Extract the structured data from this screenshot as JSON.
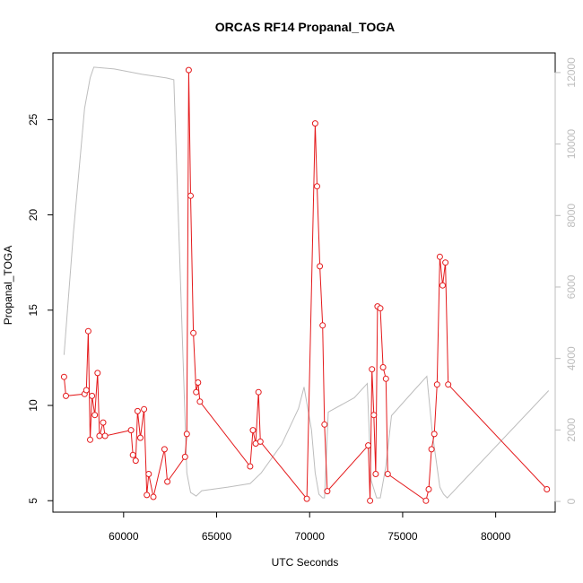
{
  "chart_data": {
    "type": "line",
    "title": "ORCAS RF14 Propanal_TOGA",
    "xlabel": "UTC Seconds",
    "ylabel": "Propanal_TOGA",
    "xlim": [
      56200,
      83200
    ],
    "ylim": [
      4.4,
      28.5
    ],
    "y2lim": [
      -300,
      12550
    ],
    "x_ticks": [
      60000,
      65000,
      70000,
      75000,
      80000
    ],
    "x_tick_labels": [
      "60000",
      "65000",
      "70000",
      "75000",
      "80000"
    ],
    "y_ticks": [
      5,
      10,
      15,
      20,
      25
    ],
    "y_tick_labels": [
      "5",
      "10",
      "15",
      "20",
      "25"
    ],
    "y2_ticks": [
      0,
      2000,
      4000,
      6000,
      8000,
      10000,
      12000
    ],
    "y2_tick_labels": [
      "0",
      "2000",
      "4000",
      "6000",
      "8000",
      "10000",
      "12000"
    ],
    "grid": false,
    "series": [
      {
        "axis": "left",
        "color": "#e41a1c",
        "marker": "open-circle",
        "x": [
          56800,
          56900,
          57900,
          58000,
          58100,
          58200,
          58300,
          58450,
          58600,
          58700,
          58900,
          59000,
          60400,
          60500,
          60650,
          60750,
          60900,
          61100,
          61250,
          61350,
          61600,
          62200,
          62350,
          63300,
          63400,
          63500,
          63600,
          63750,
          63900,
          64000,
          64100,
          66800,
          66950,
          67100,
          67250,
          67350,
          69850,
          70300,
          70400,
          70550,
          70700,
          70800,
          70950,
          73150,
          73250,
          73350,
          73450,
          73550,
          73650,
          73800,
          73950,
          74100,
          74200,
          76250,
          76400,
          76550,
          76700,
          76850,
          77000,
          77150,
          77300,
          77450,
          82750
        ],
        "y": [
          11.5,
          10.5,
          10.6,
          10.8,
          13.9,
          8.2,
          10.5,
          9.5,
          11.7,
          8.4,
          9.1,
          8.4,
          8.7,
          7.4,
          7.1,
          9.7,
          8.3,
          9.8,
          5.3,
          6.4,
          5.2,
          7.7,
          6.0,
          7.3,
          8.5,
          27.6,
          21.0,
          13.8,
          10.7,
          11.2,
          10.2,
          6.8,
          8.7,
          8.0,
          10.7,
          8.1,
          5.1,
          24.8,
          21.5,
          17.3,
          14.2,
          9.0,
          5.5,
          7.9,
          5.0,
          11.9,
          9.5,
          6.4,
          15.2,
          15.1,
          12.0,
          11.4,
          6.4,
          5.0,
          5.6,
          7.7,
          8.5,
          11.1,
          17.8,
          16.3,
          17.5,
          11.1,
          5.6
        ]
      },
      {
        "axis": "right",
        "color": "#bdbdbd",
        "marker": "none",
        "x": [
          56800,
          57300,
          57900,
          58200,
          58400,
          59500,
          61000,
          62300,
          62700,
          63400,
          63600,
          63900,
          64000,
          64200,
          65600,
          66800,
          67400,
          68500,
          69400,
          69700,
          70100,
          70300,
          70500,
          70700,
          70800,
          71000,
          72400,
          73100,
          73300,
          73600,
          73800,
          74100,
          74400,
          75600,
          76300,
          76600,
          77000,
          77200,
          77400,
          82850
        ],
        "y": [
          4100,
          7500,
          11000,
          11850,
          12150,
          12100,
          11950,
          11850,
          11800,
          800,
          250,
          150,
          200,
          300,
          400,
          500,
          800,
          1600,
          2600,
          3200,
          2000,
          800,
          200,
          100,
          100,
          2500,
          2900,
          3300,
          600,
          100,
          100,
          1000,
          2400,
          3100,
          3500,
          1900,
          400,
          200,
          100,
          3100
        ]
      }
    ]
  }
}
